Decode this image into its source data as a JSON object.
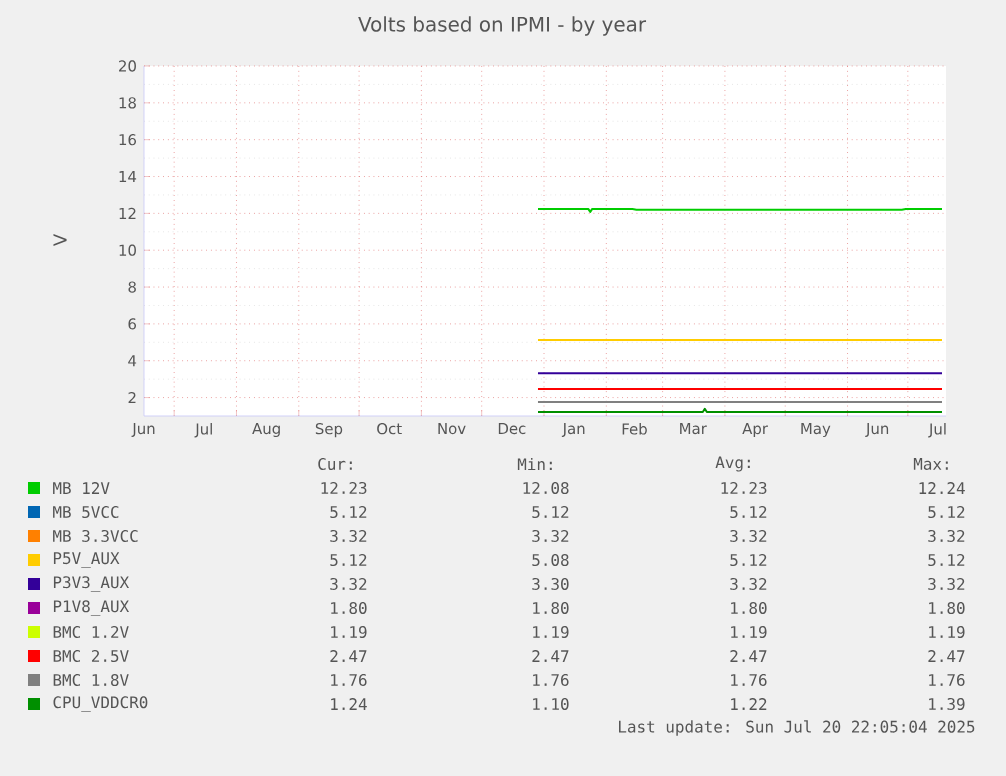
{
  "chart_data": {
    "type": "line",
    "title": "Volts based on IPMI - by year",
    "ylabel": "V",
    "xlim": [
      "2024-06-16",
      "2025-07-20"
    ],
    "xticks": [
      {
        "value": "2024-06-16",
        "label": "Jun"
      },
      {
        "value": "2024-07-01",
        "label": null
      },
      {
        "value": "2024-07-16",
        "label": "Jul"
      },
      {
        "value": "2024-08-01",
        "label": null
      },
      {
        "value": "2024-08-16",
        "label": "Aug"
      },
      {
        "value": "2024-09-01",
        "label": null
      },
      {
        "value": "2024-09-16",
        "label": "Sep"
      },
      {
        "value": "2024-10-01",
        "label": null
      },
      {
        "value": "2024-10-16",
        "label": "Oct"
      },
      {
        "value": "2024-11-01",
        "label": null
      },
      {
        "value": "2024-11-16",
        "label": "Nov"
      },
      {
        "value": "2024-12-01",
        "label": null
      },
      {
        "value": "2024-12-16",
        "label": "Dec"
      },
      {
        "value": "2025-01-01",
        "label": null
      },
      {
        "value": "2025-01-16",
        "label": "Jan"
      },
      {
        "value": "2025-02-01",
        "label": null
      },
      {
        "value": "2025-02-15",
        "label": "Feb"
      },
      {
        "value": "2025-03-01",
        "label": null
      },
      {
        "value": "2025-03-16",
        "label": "Mar"
      },
      {
        "value": "2025-04-01",
        "label": null
      },
      {
        "value": "2025-04-16",
        "label": "Apr"
      },
      {
        "value": "2025-05-01",
        "label": null
      },
      {
        "value": "2025-05-16",
        "label": "May"
      },
      {
        "value": "2025-06-01",
        "label": null
      },
      {
        "value": "2025-06-16",
        "label": "Jun"
      },
      {
        "value": "2025-07-01",
        "label": null
      },
      {
        "value": "2025-07-16",
        "label": "Jul"
      }
    ],
    "ylim": [
      1,
      20
    ],
    "yticks": [
      2,
      4,
      6,
      8,
      10,
      12,
      14,
      16,
      18,
      20
    ],
    "grid": true,
    "legend": "bottom",
    "marker": "none",
    "line_style": "solid",
    "series": [
      {
        "name": "MB 12V",
        "color": "#00cc00",
        "x": [
          "2024-12-29",
          "2025-01-23",
          "2025-01-24",
          "2025-01-25",
          "2025-02-14",
          "2025-02-16",
          "2025-06-28",
          "2025-06-30",
          "2025-07-18"
        ],
        "values": [
          12.24,
          12.24,
          12.08,
          12.24,
          12.24,
          12.2,
          12.2,
          12.24,
          12.24
        ]
      },
      {
        "name": "MB 5VCC",
        "color": "#0066b3"
      },
      {
        "name": "MB 3.3VCC",
        "color": "#ff8000"
      },
      {
        "name": "P5V_AUX",
        "color": "#ffcc00",
        "x": [
          "2024-12-29",
          "2025-07-18"
        ],
        "values": [
          5.12,
          5.12
        ]
      },
      {
        "name": "P3V3_AUX",
        "color": "#330099",
        "x": [
          "2024-12-29",
          "2025-07-18"
        ],
        "values": [
          3.32,
          3.32
        ]
      },
      {
        "name": "P1V8_AUX",
        "color": "#990099"
      },
      {
        "name": "BMC 1.2V",
        "color": "#ccff00"
      },
      {
        "name": "BMC 2.5V",
        "color": "#ff0000",
        "x": [
          "2024-12-29",
          "2025-07-18"
        ],
        "values": [
          2.47,
          2.47
        ]
      },
      {
        "name": "BMC 1.8V",
        "color": "#808080",
        "x": [
          "2024-12-29",
          "2025-07-18"
        ],
        "values": [
          1.76,
          1.76
        ]
      },
      {
        "name": "CPU_VDDCR0",
        "color": "#008f00",
        "x": [
          "2024-12-29",
          "2025-03-21",
          "2025-03-22",
          "2025-03-23",
          "2025-07-18"
        ],
        "values": [
          1.22,
          1.22,
          1.39,
          1.22,
          1.22
        ]
      }
    ],
    "annotations": [
      "Cur:",
      "Min:",
      "Avg:",
      "Max:",
      "12.23",
      "12.08",
      "12.23",
      "12.24",
      "5.12",
      "5.12",
      "5.12",
      "5.12",
      "3.32",
      "3.32",
      "3.32",
      "3.32",
      "5.12",
      "5.08",
      "5.12",
      "5.12",
      "3.32",
      "3.30",
      "3.32",
      "3.32",
      "1.80",
      "1.80",
      "1.80",
      "1.80",
      "1.19",
      "1.19",
      "1.19",
      "1.19",
      "2.47",
      "2.47",
      "2.47",
      "2.47",
      "1.76",
      "1.76",
      "1.76",
      "1.76",
      "1.24",
      "1.10",
      "1.22",
      "1.39",
      "Last update: Sun Jul 20 22:05:04 2025"
    ]
  }
}
